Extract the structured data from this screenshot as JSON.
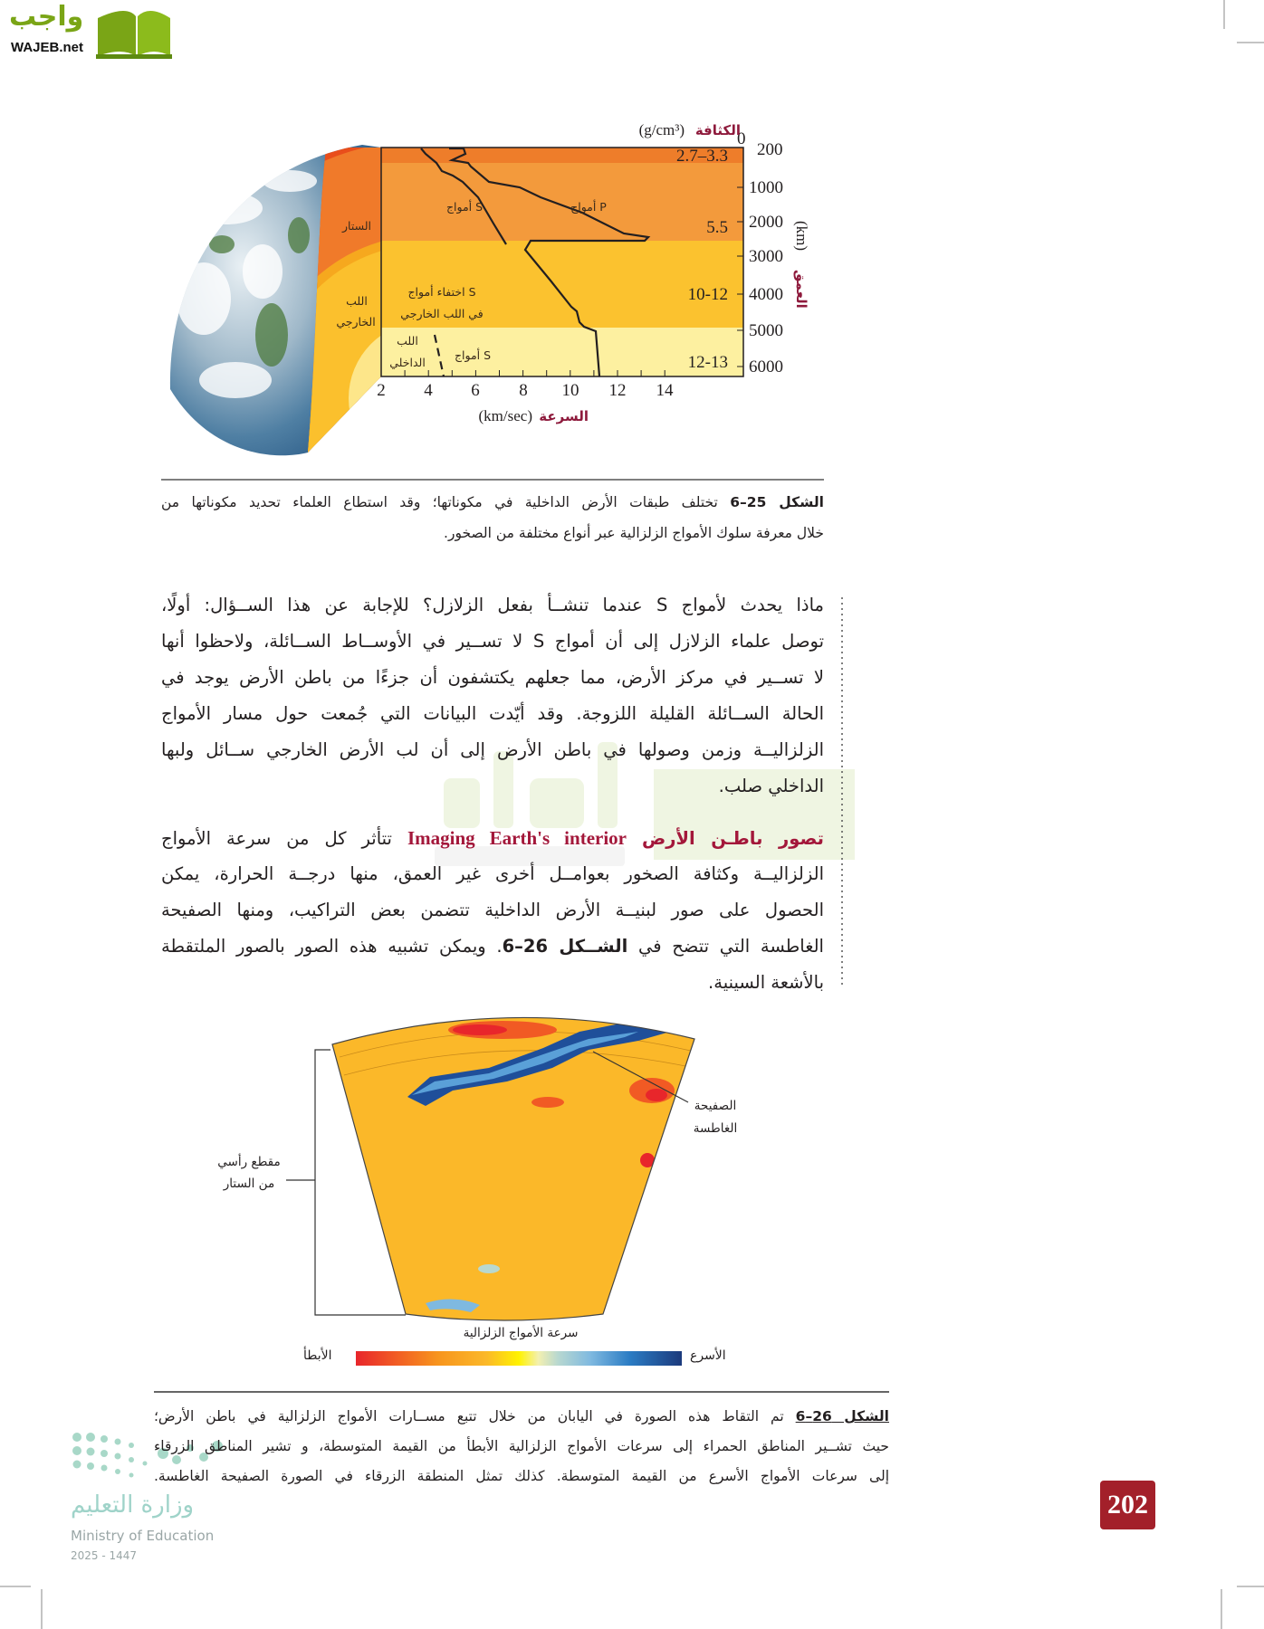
{
  "logo": {
    "arabic": "واجب",
    "latin": "WAJEB.net",
    "color": "#7aa516"
  },
  "figure_25": {
    "density_title": "الكثافة",
    "density_unit": "(g/cm³)",
    "depth_title": "العمق",
    "depth_unit": "(km)",
    "speed_title": "السرعة",
    "speed_unit": "(km/sec)",
    "depth_ticks": [
      "0",
      "200",
      "1000",
      "2000",
      "3000",
      "4000",
      "5000",
      "6000"
    ],
    "speed_ticks": [
      "2",
      "4",
      "6",
      "8",
      "10",
      "12",
      "14"
    ],
    "densities": [
      "2.7–3.3",
      "5.5",
      "10-12",
      "12-13"
    ],
    "labels": {
      "s_waves": "أمواج S",
      "p_waves": "أمواج P",
      "s_vanish_1": "اختفاء أمواج S",
      "s_vanish_2": "في اللب الخارجي",
      "s_waves_inner": "أمواج S",
      "inner_core_1": "اللب",
      "inner_core_2": "الداخلي",
      "mantle": "الستار",
      "outer_core_1": "اللب",
      "outer_core_2": "الخارجي"
    },
    "caption_bold": "الشكل 25–6",
    "caption_lines": [
      "تختلف طبقات الأرض الداخلية في مكوناتها؛ وقد استطاع العلماء تحديد مكوناتها من",
      "خلال معرفة سلوك الأمواج الزلزالية عبر أنواع مختلفة من الصخور."
    ]
  },
  "paragraph_1": [
    "ماذا يحدث لأمواج S عندما تنشــأ بفعل الزلازل؟ للإجابة عن هذا الســؤال: أولًا،",
    "توصل علماء الزلازل إلى أن أمواج S لا تســير في الأوســاط الســائلة، ولاحظوا أنها",
    "لا تســير في مركز الأرض، مما جعلهم يكتشفون أن جزءًا من باطن الأرض يوجد في",
    "الحالة الســائلة القليلة اللزوجة. وقد أيّدت البيانات التي جُمعت حول مسار الأمواج",
    "الزلزاليــة وزمن وصولها في باطن الأرض إلى أن لب الأرض الخارجي ســائل ولبها",
    "الداخلي صلب."
  ],
  "paragraph_2": {
    "heading_ar": "تصور باطـن الأرض",
    "heading_en": "Imaging Earth's interior",
    "first_line_rest": "تتأثر كل من سرعة الأمواج",
    "lines": [
      "الزلزاليــة وكثافة الصخور بعوامــل أخرى غير العمق، منها درجــة الحرارة، يمكن",
      "الحصول على صور لبنيــة الأرض الداخلية تتضمن بعض التراكيب، ومنها الصفيحة"
    ],
    "line4_start": "الغاطسة التي تتضح في",
    "line4_bold": "الشــكل 26–6",
    "line4_end": ". ويمكن تشبيه هذه الصور بالصور الملتقطة",
    "line5": "بالأشعة السينية."
  },
  "figure_26": {
    "section_label_1": "مقطع رأسي",
    "section_label_2": "من الستار",
    "slab_label_1": "الصفيحة",
    "slab_label_2": "الغاطسة",
    "scale_title": "سرعة الأمواج الزلزالية",
    "scale_slow": "الأبطأ",
    "scale_fast": "الأسرع",
    "scale_colors": [
      "#e8262b",
      "#f15a24",
      "#f7941d",
      "#fbb829",
      "#fff200",
      "#f3f0b0",
      "#b8d8d0",
      "#7fb9e0",
      "#2b7cc4",
      "#1f4f9a",
      "#1c3a7c"
    ],
    "caption_bold": "الشكل 26–6",
    "caption_lines": [
      "تم التقاط هذه الصورة في اليابان من خلال تتبع مســارات الأمواج الزلزالية في باطن الأرض؛",
      "حيث تشــير المناطق الحمراء إلى سرعات الأمواج الزلزالية الأبطأ من القيمة المتوسطة، و تشير المناطق الزرقاء",
      "إلى سرعات الأمواج الأسرع من القيمة المتوسطة. كذلك تمثل المنطقة الزرقاء في الصورة الصفيحة الغاطسة."
    ]
  },
  "watermark": {
    "arabic": "واجب",
    "latin": "WAJEB.net"
  },
  "footer": {
    "ministry_ar": "وزارة التعليم",
    "ministry_en": "Ministry of Education",
    "year": "2025 - 1447",
    "page_number": "202",
    "page_color": "#a3202a"
  }
}
